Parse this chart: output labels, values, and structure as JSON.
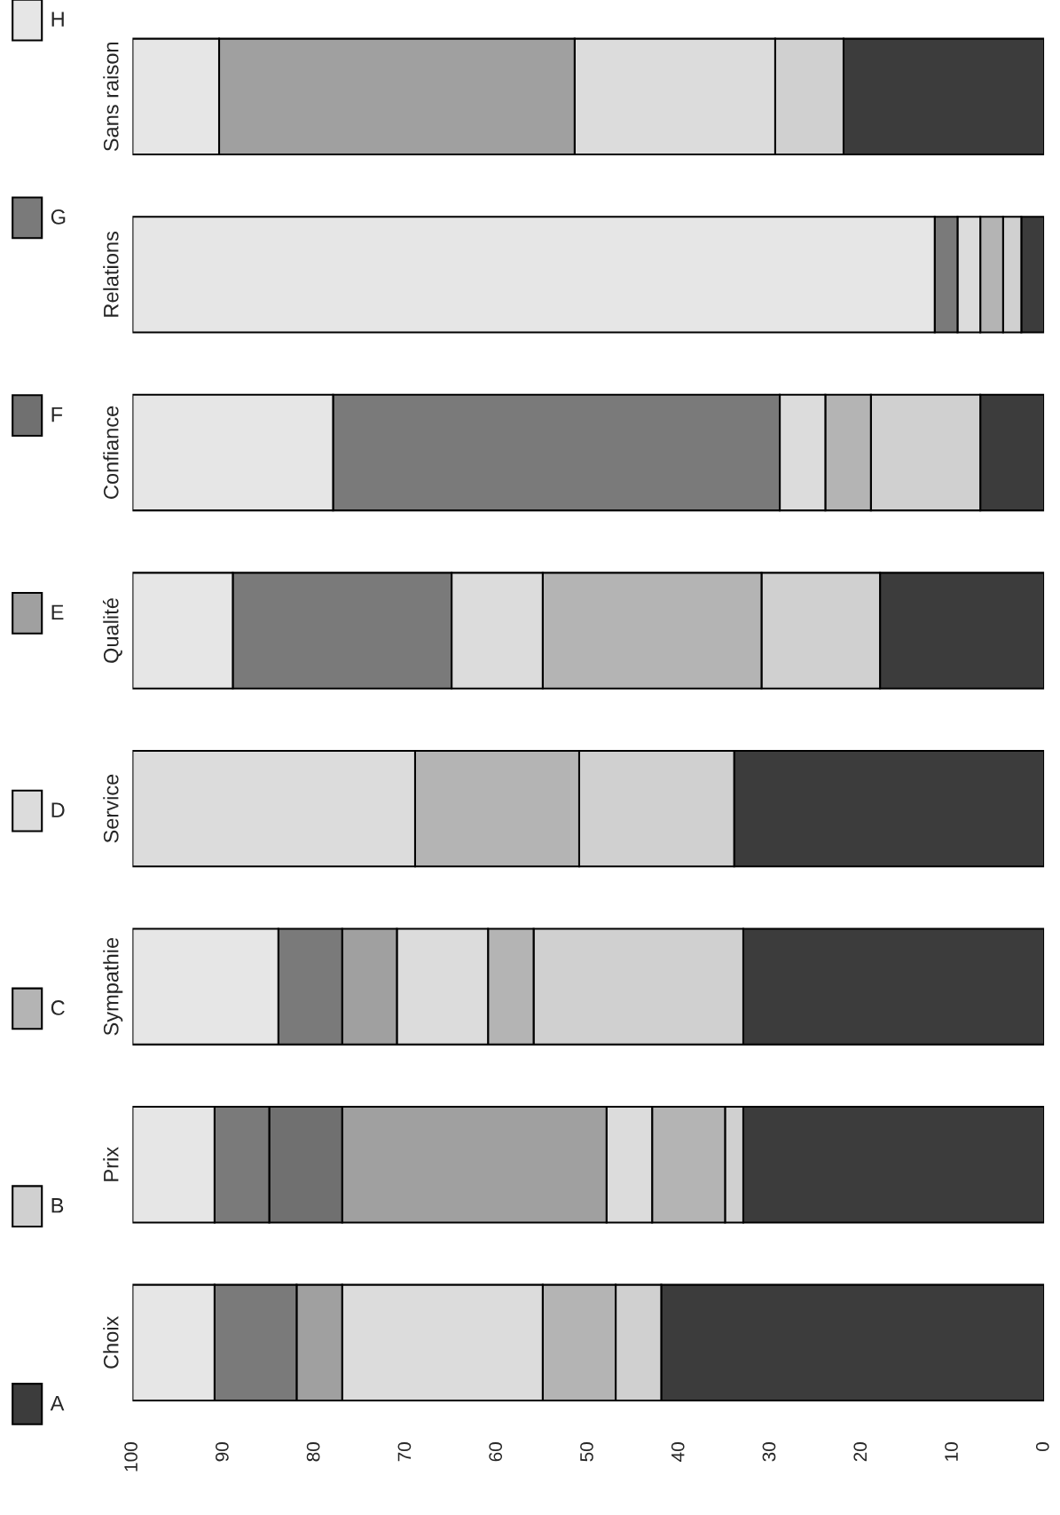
{
  "chart_data": {
    "type": "bar",
    "orientation": "horizontal",
    "stacked": true,
    "categories": [
      "Sans raison",
      "Relations",
      "Confiance",
      "Qualité",
      "Service",
      "Sympathie",
      "Prix",
      "Choix"
    ],
    "series": [
      {
        "name": "A",
        "color": "#3c3c3c",
        "values": [
          22,
          2.5,
          7,
          18,
          34,
          33,
          33,
          42
        ]
      },
      {
        "name": "B",
        "color": "#d0d0d0",
        "values": [
          7.5,
          2,
          12,
          13,
          17,
          23,
          2,
          5
        ]
      },
      {
        "name": "C",
        "color": "#b4b4b4",
        "values": [
          0,
          2.5,
          5,
          24,
          18,
          5,
          8,
          8
        ]
      },
      {
        "name": "D",
        "color": "#dcdcdc",
        "values": [
          22,
          2.5,
          5,
          10,
          31,
          10,
          5,
          22
        ]
      },
      {
        "name": "E",
        "color": "#a0a0a0",
        "values": [
          39,
          0,
          0,
          0,
          0,
          6,
          29,
          5
        ]
      },
      {
        "name": "F",
        "color": "#707070",
        "values": [
          0,
          0,
          0,
          0,
          0,
          0,
          8,
          0
        ]
      },
      {
        "name": "G",
        "color": "#7a7a7a",
        "values": [
          0,
          2.5,
          49,
          24,
          0,
          7,
          6,
          9
        ]
      },
      {
        "name": "H",
        "color": "#e6e6e6",
        "values": [
          9.5,
          88,
          22,
          11,
          0,
          16,
          9,
          9
        ]
      }
    ],
    "xlim": [
      100,
      0
    ],
    "xticks": [
      0,
      10,
      20,
      30,
      40,
      50,
      60,
      70,
      80,
      90,
      100
    ],
    "legend": "left",
    "grid": false
  }
}
